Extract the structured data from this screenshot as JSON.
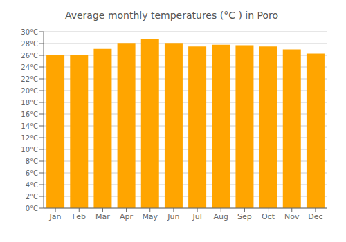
{
  "chart_data": {
    "type": "bar",
    "title": "Average monthly temperatures (°C ) in Poro",
    "categories": [
      "Jan",
      "Feb",
      "Mar",
      "Apr",
      "May",
      "Jun",
      "Jul",
      "Aug",
      "Sep",
      "Oct",
      "Nov",
      "Dec"
    ],
    "values": [
      26.0,
      26.1,
      27.1,
      28.1,
      28.7,
      28.1,
      27.5,
      27.8,
      27.7,
      27.5,
      27.0,
      26.3
    ],
    "color": "#FFA500",
    "ylim": [
      0,
      30
    ],
    "yticks": [
      {
        "value": 0,
        "label": "0°C"
      },
      {
        "value": 2,
        "label": "2°C"
      },
      {
        "value": 4,
        "label": "4°C"
      },
      {
        "value": 6,
        "label": "6°C"
      },
      {
        "value": 8,
        "label": "8°C"
      },
      {
        "value": 10,
        "label": "10°C"
      },
      {
        "value": 12,
        "label": "12°C"
      },
      {
        "value": 14,
        "label": "14°C"
      },
      {
        "value": 16,
        "label": "16°C"
      },
      {
        "value": 18,
        "label": "18°C"
      },
      {
        "value": 20,
        "label": "20°C"
      },
      {
        "value": 22,
        "label": "22°C"
      },
      {
        "value": 24,
        "label": "24°C"
      },
      {
        "value": 26,
        "label": "26°C"
      },
      {
        "value": 28,
        "label": "28°C"
      },
      {
        "value": 30,
        "label": "30°C"
      }
    ],
    "grid": true
  }
}
